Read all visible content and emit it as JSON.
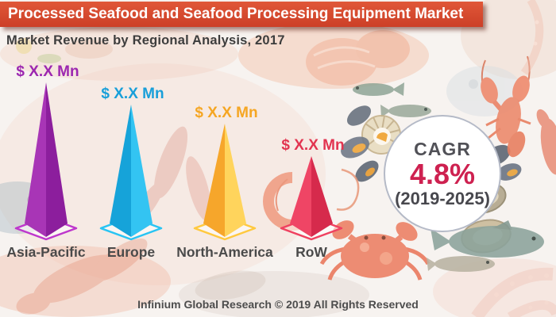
{
  "header": {
    "title": "Processed Seafood and Seafood Processing Equipment Market",
    "subtitle": "Market Revenue by Regional Analysis, 2017"
  },
  "chart_data": {
    "type": "bar",
    "style": "3d-cone-pyramids",
    "title": "Market Revenue by Regional Analysis, 2017",
    "year": "2017",
    "categories": [
      "Asia-Pacific",
      "Europe",
      "North-America",
      "RoW"
    ],
    "values": [
      "$ X.X Mn",
      "$ X.X Mn",
      "$ X.X Mn",
      "$ X.X Mn"
    ],
    "relative_heights": [
      1.0,
      0.84,
      0.71,
      0.48
    ],
    "cagr": "4.8%",
    "cagr_period": "2019-2025",
    "legend": "none",
    "grid": false
  },
  "cones": [
    {
      "region": "Asia-Pacific",
      "value_label": "$ X.X Mn",
      "face_left": "#a835b6",
      "face_right": "#8c1e9d",
      "outline": "#be37cc",
      "label_color": "#9c27b0",
      "rel_height": 1.0
    },
    {
      "region": "Europe",
      "value_label": "$ X.X Mn",
      "face_left": "#16a3d9",
      "face_right": "#33c4f2",
      "outline": "#28c4f3",
      "label_color": "#189fd9",
      "rel_height": 0.84
    },
    {
      "region": "North-America",
      "value_label": "$ X.X Mn",
      "face_left": "#f6a62b",
      "face_right": "#ffd45c",
      "outline": "#ffc93f",
      "label_color": "#f5a623",
      "rel_height": 0.71
    },
    {
      "region": "RoW",
      "value_label": "$ X.X Mn",
      "face_left": "#ef4565",
      "face_right": "#d62a4c",
      "outline": "#ef4160",
      "label_color": "#e23450",
      "rel_height": 0.48
    }
  ],
  "cagr": {
    "label": "CAGR",
    "value": "4.8%",
    "period": "(2019-2025)",
    "value_color": "#ce2150",
    "text_color": "#4c4c52"
  },
  "footer": {
    "text": "Infinium Global Research © 2019 All Rights Reserved"
  },
  "colors": {
    "banner_bg": "#d8472e",
    "banner_text": "#ffffff",
    "subtitle_text": "#3d3d3d",
    "region_label": "#4a4a4a",
    "background": "#f7f3f0"
  },
  "background_illustrations": [
    "salmon-fillet-wash",
    "sardine-fish",
    "scallop-shell",
    "mussels",
    "shrimp",
    "crab",
    "lobster",
    "oysters",
    "gray-fish",
    "octopus-tentacles",
    "crayfish-wash",
    "left-fish-wash"
  ]
}
